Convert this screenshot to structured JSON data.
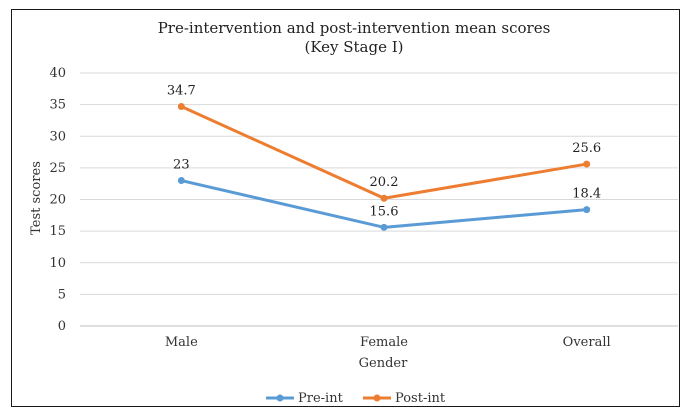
{
  "chart_data": {
    "type": "line",
    "title": "Pre-intervention and post-intervention mean scores",
    "subtitle": "(Key Stage I)",
    "xlabel": "Gender",
    "ylabel": "Test scores",
    "categories": [
      "Male",
      "Female",
      "Overall"
    ],
    "ylim": [
      0,
      40
    ],
    "yticks": [
      "0",
      "5",
      "10",
      "15",
      "20",
      "25",
      "30",
      "35",
      "40"
    ],
    "grid": true,
    "legend_position": "bottom",
    "series": [
      {
        "name": "Pre-int",
        "values": [
          23,
          15.6,
          18.4
        ],
        "labels": [
          "23",
          "15.6",
          "18.4"
        ],
        "color": "#5b9bd5"
      },
      {
        "name": "Post-int",
        "values": [
          34.7,
          20.2,
          25.6
        ],
        "labels": [
          "34.7",
          "20.2",
          "25.6"
        ],
        "color": "#ed7d31"
      }
    ]
  }
}
